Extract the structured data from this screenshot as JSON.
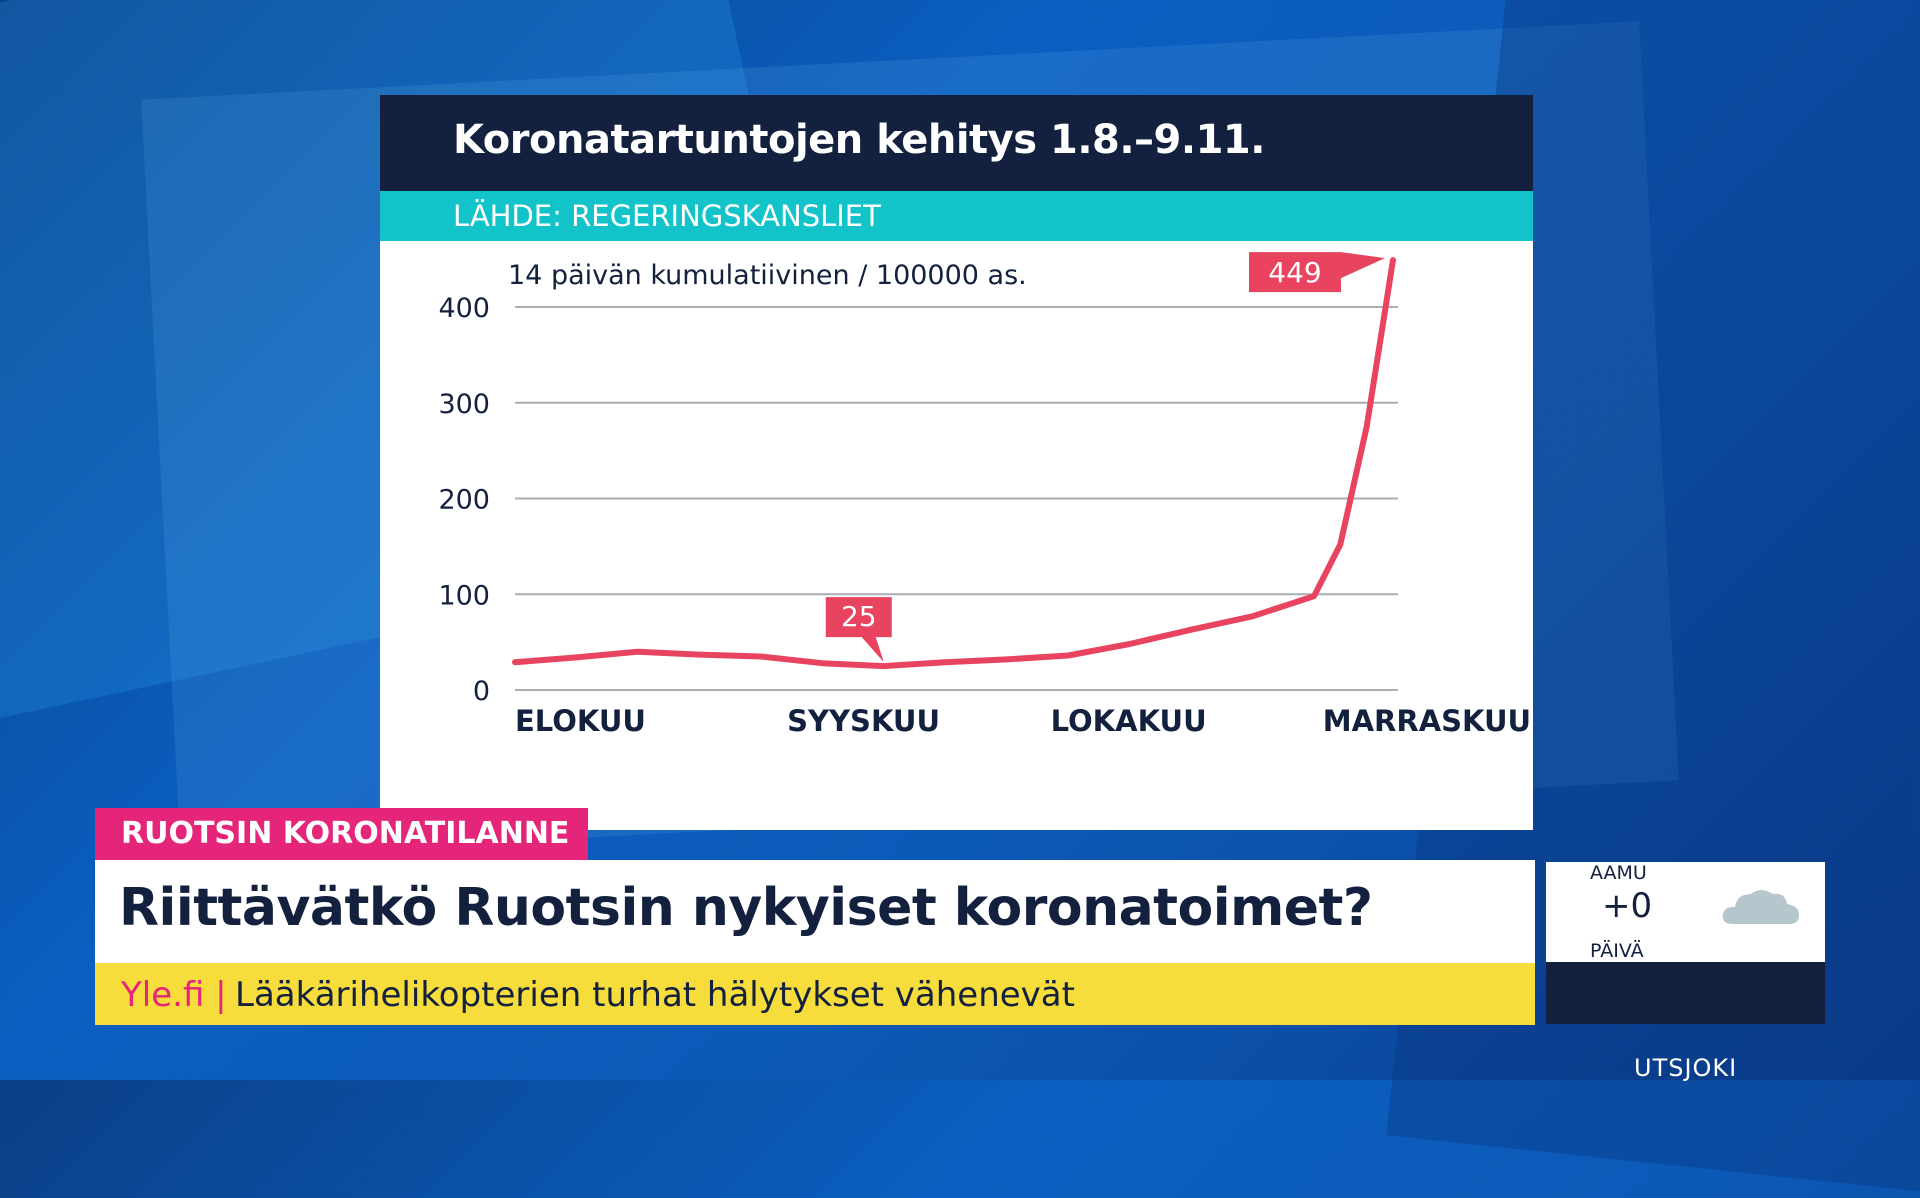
{
  "chart_data": {
    "type": "line",
    "title": "Koronatartuntojen kehitys 1.8.–9.11.",
    "source": "LÄHDE: REGERINGSKANSLIET",
    "ylabel": "14 päivän kumulatiivinen / 100000 as.",
    "ylim": [
      0,
      400
    ],
    "y_ticks": [
      "0",
      "100",
      "200",
      "300",
      "400"
    ],
    "x_labels": [
      "ELOKUU",
      "SYYSKUU",
      "LOKAKUU",
      "MARRASKUU"
    ],
    "grid": true,
    "line_color": "#e8445f",
    "series": [
      {
        "x": [
          "2020-08-01",
          "2020-08-08",
          "2020-08-15",
          "2020-08-22",
          "2020-08-29",
          "2020-09-05",
          "2020-09-12",
          "2020-09-19",
          "2020-09-26",
          "2020-10-03",
          "2020-10-10",
          "2020-10-17",
          "2020-10-24",
          "2020-10-31",
          "2020-11-03",
          "2020-11-06",
          "2020-11-09"
        ],
        "y": [
          29,
          34,
          40,
          37,
          35,
          28,
          25,
          29,
          32,
          36,
          48,
          63,
          77,
          98,
          152,
          275,
          449
        ]
      }
    ],
    "annotations": [
      {
        "label": "25",
        "x": "2020-09-12",
        "y": 25
      },
      {
        "label": "449",
        "x": "2020-11-09",
        "y": 449
      }
    ]
  },
  "lower_third": {
    "topic": "RUOTSIN KORONATILANNE",
    "headline": "Riittävätkö Ruotsin nykyiset koronatoimet?",
    "ticker_source": "Yle.fi |",
    "ticker_text": "Lääkärihelikopterien turhat hälytykset vähenevät"
  },
  "weather": {
    "morning_label": "AAMU",
    "temperature": "+0",
    "day_label": "PÄIVÄ",
    "place": "UTSJOKI",
    "icon": "cloud-icon"
  }
}
